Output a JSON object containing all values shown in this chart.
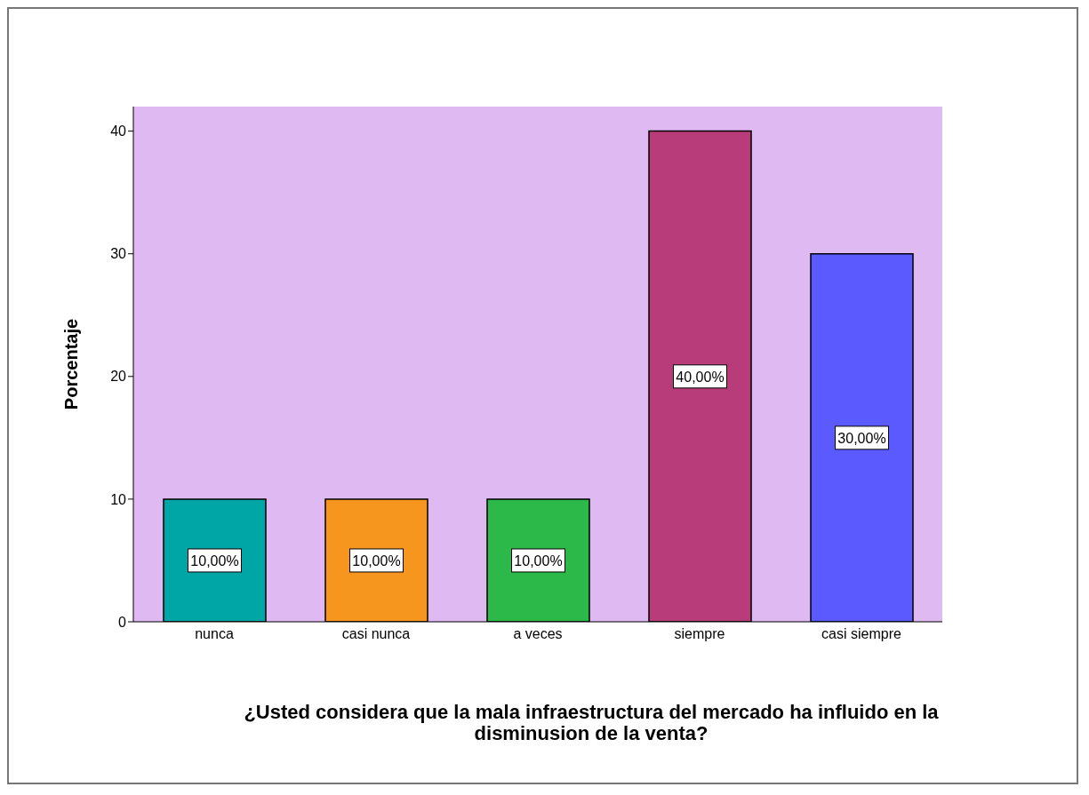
{
  "chart_data": {
    "type": "bar",
    "ylabel": "Porcentaje",
    "xlabel": "¿Usted considera que la mala infraestructura del mercado ha influido en la disminusion de la venta?",
    "categories": [
      "nunca",
      "casi nunca",
      "a veces",
      "siempre",
      "casi siempre"
    ],
    "values": [
      10,
      10,
      10,
      40,
      30
    ],
    "colors": [
      "#00a5a5",
      "#f7961e",
      "#2db84a",
      "#b83c7a",
      "#5a5aff"
    ],
    "value_labels": [
      "10,00%",
      "10,00%",
      "10,00%",
      "40,00%",
      "30,00%"
    ],
    "ylim": [
      0,
      42
    ],
    "yticks": [
      0,
      10,
      20,
      30,
      40
    ],
    "legend": false
  }
}
